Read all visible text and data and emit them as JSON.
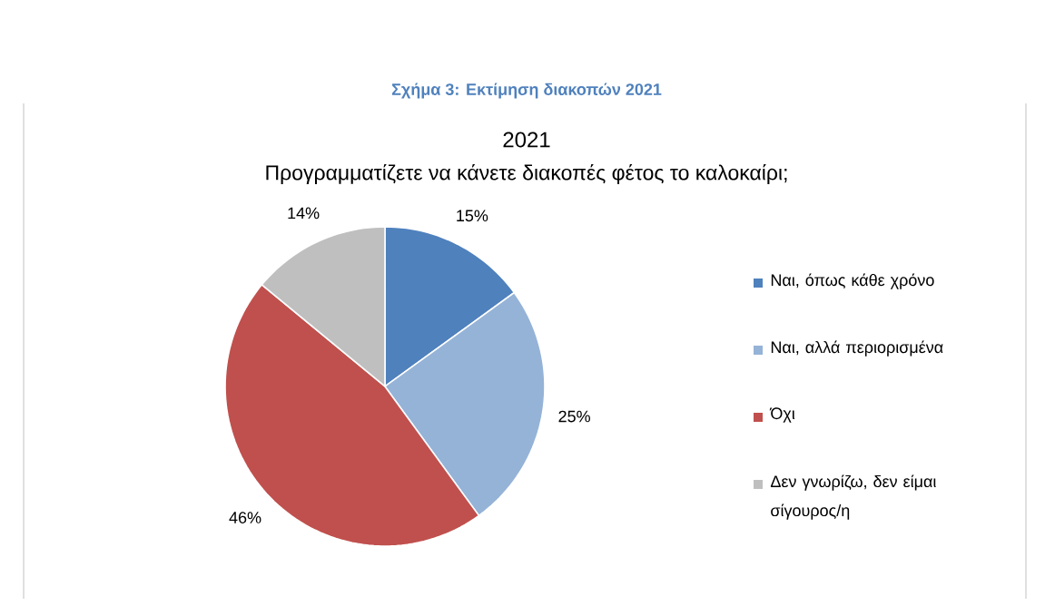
{
  "chart_data": {
    "type": "pie",
    "title": "2021",
    "subtitle": "Προγραμματίζετε να κάνετε διακοπές φέτος το καλοκαίρι;",
    "annotations": [
      "Σχήμα 3: Εκτίμηση διακοπών  2021"
    ],
    "categories": [
      "Ναι,  όπως κάθε χρόνο",
      "Ναι,  αλλά  περιορισμένα",
      "Όχι",
      "Δεν γνωρίζω,  δεν είμαι σίγουρος/η"
    ],
    "values": [
      15,
      25,
      46,
      14
    ],
    "value_labels": [
      "15%",
      "25%",
      "46%",
      "14%"
    ],
    "colors": [
      "#4f81bd",
      "#95b3d7",
      "#c0504d",
      "#bfbfbf"
    ],
    "legend": "right"
  }
}
